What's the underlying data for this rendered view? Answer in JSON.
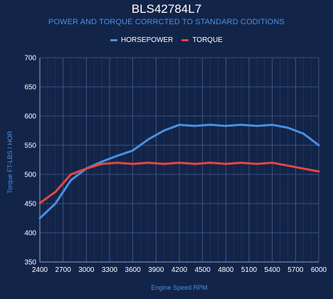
{
  "chart_data": {
    "type": "line",
    "title": "BLS42784L7",
    "subtitle": "POWER AND TORQUE CORRCTED TO STANDARD CODITIONS",
    "xlabel": "Engine Speed RPM",
    "ylabel": "Torque FT-LBS / HOR",
    "x_ticks": [
      "2400",
      "2700",
      "3000",
      "3300",
      "3600",
      "3900",
      "4200",
      "4500",
      "4800",
      "5100",
      "5400",
      "5700",
      "6000"
    ],
    "y_ticks": [
      "350",
      "400",
      "450",
      "500",
      "550",
      "600",
      "650",
      "700"
    ],
    "xlim": [
      2400,
      6000
    ],
    "ylim": [
      350,
      700
    ],
    "grid": true,
    "legend": "top-center",
    "x": [
      2400,
      2600,
      2800,
      3000,
      3200,
      3400,
      3600,
      3800,
      4000,
      4200,
      4400,
      4600,
      4800,
      5000,
      5200,
      5400,
      5600,
      5800,
      6000
    ],
    "series": [
      {
        "name": "HORSEPOWER",
        "color": "#4a90e2",
        "values": [
          425,
          450,
          490,
          510,
          522,
          532,
          541,
          560,
          575,
          585,
          583,
          585,
          583,
          585,
          583,
          585,
          580,
          570,
          550
        ]
      },
      {
        "name": "TORQUE",
        "color": "#e8473f",
        "values": [
          451,
          470,
          500,
          510,
          518,
          520,
          518,
          520,
          518,
          520,
          518,
          520,
          518,
          520,
          518,
          520,
          515,
          510,
          505
        ]
      }
    ]
  }
}
